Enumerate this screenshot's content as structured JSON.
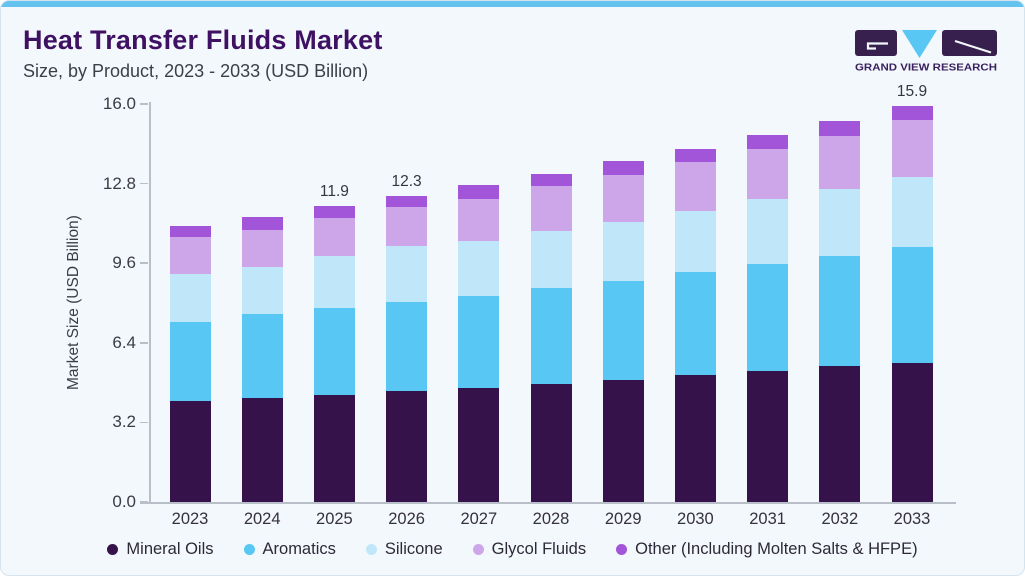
{
  "header": {
    "title": "Heat Transfer Fluids Market",
    "subtitle": "Size, by Product, 2023 - 2033 (USD Billion)"
  },
  "logo": {
    "text": "GRAND VIEW RESEARCH"
  },
  "colors": {
    "accent_bar": "#63c3ee",
    "brand_purple": "#3f1163",
    "logo_dark": "#37204e",
    "logo_blue": "#58c7f4",
    "axis_line": "#b9bfc9"
  },
  "chart_data": {
    "type": "bar",
    "stacked": true,
    "title": "Heat Transfer Fluids Market Size, by Product, 2023 - 2033 (USD Billion)",
    "xlabel": "",
    "ylabel": "Market Size (USD Billion)",
    "ylim": [
      0,
      16.0
    ],
    "yticks": [
      0.0,
      3.2,
      6.4,
      9.6,
      12.8,
      16.0
    ],
    "grid": false,
    "legend_position": "bottom",
    "categories": [
      "2023",
      "2024",
      "2025",
      "2026",
      "2027",
      "2028",
      "2029",
      "2030",
      "2031",
      "2032",
      "2033"
    ],
    "series": [
      {
        "name": "Mineral Oils",
        "color": "#351249",
        "values": [
          4.05,
          4.2,
          4.3,
          4.45,
          4.6,
          4.75,
          4.9,
          5.1,
          5.25,
          5.45,
          5.6
        ]
      },
      {
        "name": "Aromatics",
        "color": "#58c7f4",
        "values": [
          3.2,
          3.35,
          3.5,
          3.6,
          3.7,
          3.85,
          4.0,
          4.15,
          4.3,
          4.45,
          4.65
        ]
      },
      {
        "name": "Silicone",
        "color": "#c0e7f9",
        "values": [
          1.9,
          1.9,
          2.1,
          2.25,
          2.2,
          2.3,
          2.35,
          2.45,
          2.65,
          2.7,
          2.8
        ]
      },
      {
        "name": "Glycol Fluids",
        "color": "#cda6e9",
        "values": [
          1.5,
          1.5,
          1.5,
          1.55,
          1.7,
          1.8,
          1.9,
          1.95,
          2.0,
          2.1,
          2.3
        ]
      },
      {
        "name": "Other (Including Molten Salts & HFPE)",
        "color": "#a355d9",
        "values": [
          0.45,
          0.5,
          0.5,
          0.45,
          0.55,
          0.5,
          0.55,
          0.55,
          0.55,
          0.6,
          0.55
        ]
      }
    ],
    "totals": [
      11.1,
      11.45,
      11.9,
      12.3,
      12.75,
      13.2,
      13.7,
      14.2,
      14.75,
      15.3,
      15.9
    ],
    "annotated_totals": {
      "2025": "11.9",
      "2026": "12.3",
      "2033": "15.9"
    }
  }
}
